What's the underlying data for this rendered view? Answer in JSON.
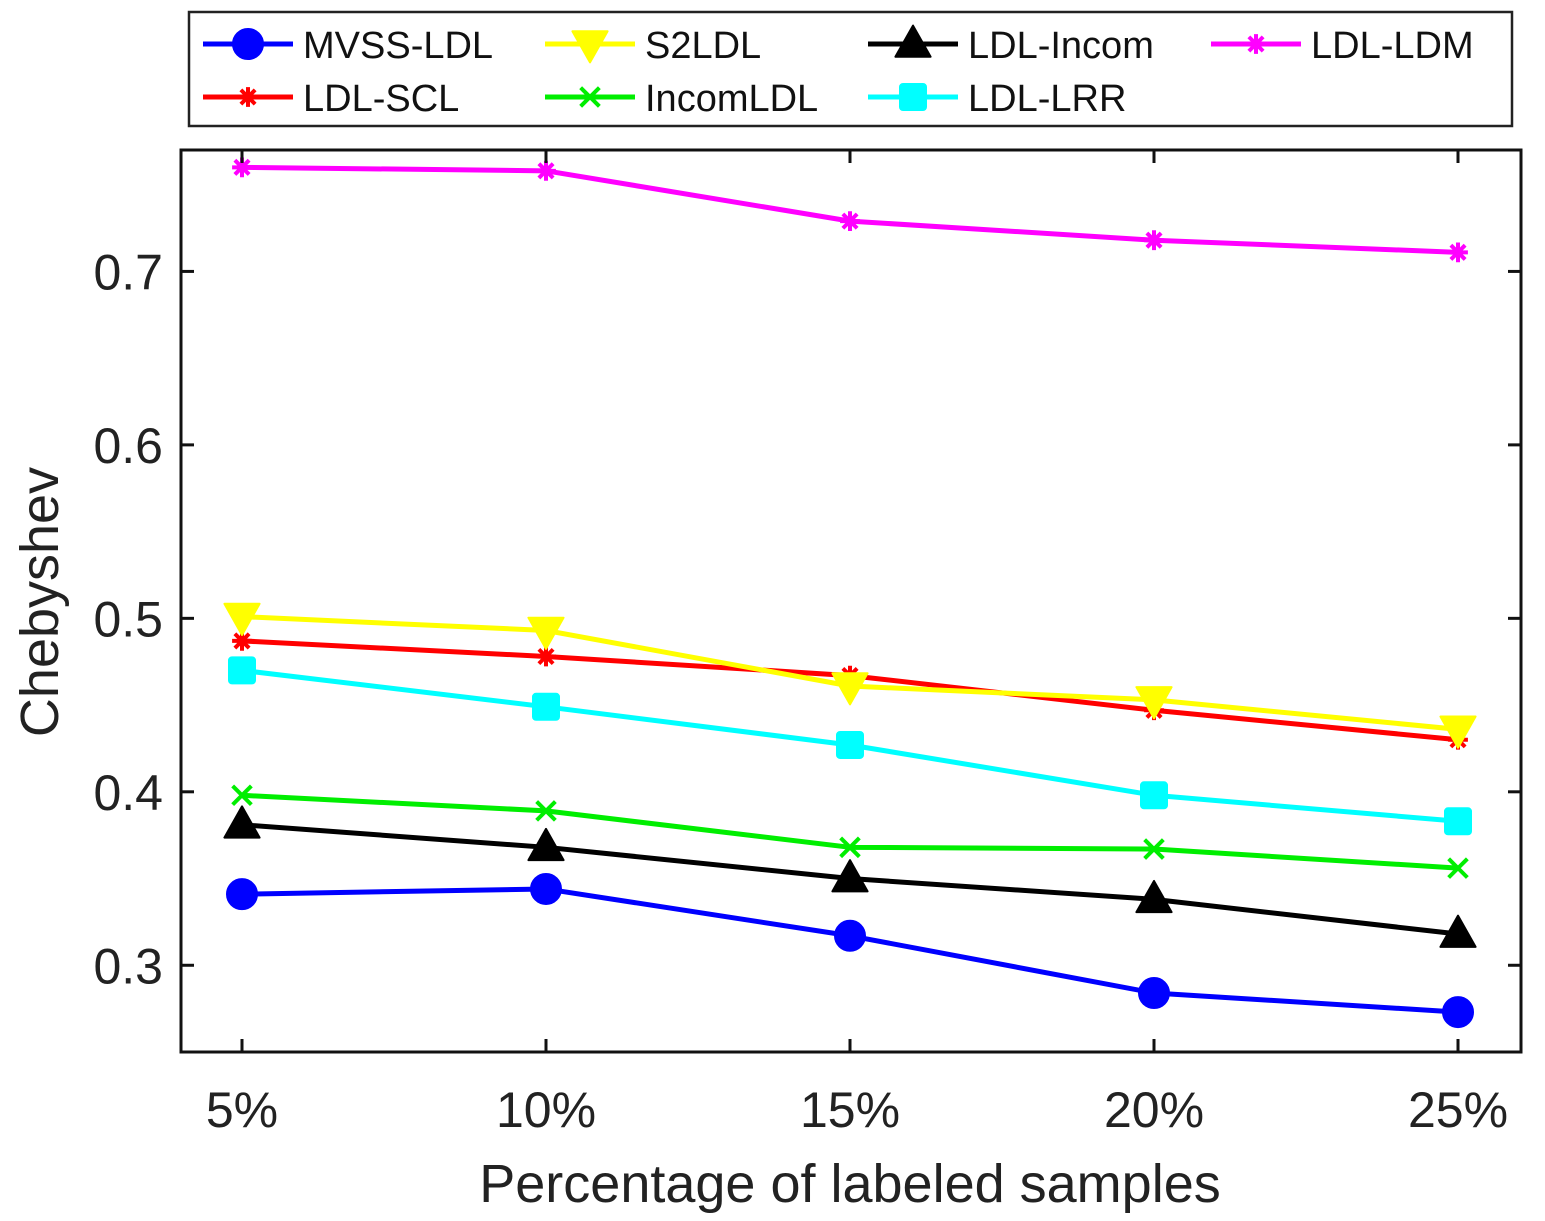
{
  "chart_data": {
    "type": "line",
    "title": "",
    "xlabel": "Percentage of labeled samples",
    "ylabel": "Chebyshev",
    "categories": [
      "5%",
      "10%",
      "15%",
      "20%",
      "25%"
    ],
    "ylim": [
      0.25,
      0.77
    ],
    "yticks": [
      0.3,
      0.4,
      0.5,
      0.6,
      0.7
    ],
    "ytick_labels": [
      "0.3",
      "0.4",
      "0.5",
      "0.6",
      "0.7"
    ],
    "grid": false,
    "legend_position": "top-outside",
    "series": [
      {
        "name": "MVSS-LDL",
        "color": "#0000ff",
        "marker": "circle",
        "values": [
          0.341,
          0.344,
          0.317,
          0.284,
          0.273
        ]
      },
      {
        "name": "S2LDL",
        "color": "#ffff00",
        "marker": "triangle-down",
        "values": [
          0.501,
          0.493,
          0.461,
          0.453,
          0.436
        ]
      },
      {
        "name": "LDL-Incom",
        "color": "#000000",
        "marker": "triangle-up",
        "values": [
          0.381,
          0.368,
          0.35,
          0.338,
          0.318
        ]
      },
      {
        "name": "LDL-LDM",
        "color": "#ff00ff",
        "marker": "asterisk",
        "values": [
          0.76,
          0.758,
          0.729,
          0.718,
          0.711
        ]
      },
      {
        "name": "LDL-SCL",
        "color": "#ff0000",
        "marker": "asterisk",
        "values": [
          0.487,
          0.478,
          0.467,
          0.447,
          0.43
        ]
      },
      {
        "name": "IncomLDL",
        "color": "#00ee00",
        "marker": "cross",
        "values": [
          0.398,
          0.389,
          0.368,
          0.367,
          0.356
        ]
      },
      {
        "name": "LDL-LRR",
        "color": "#00ffff",
        "marker": "square",
        "values": [
          0.47,
          0.449,
          0.427,
          0.398,
          0.383
        ]
      }
    ]
  }
}
